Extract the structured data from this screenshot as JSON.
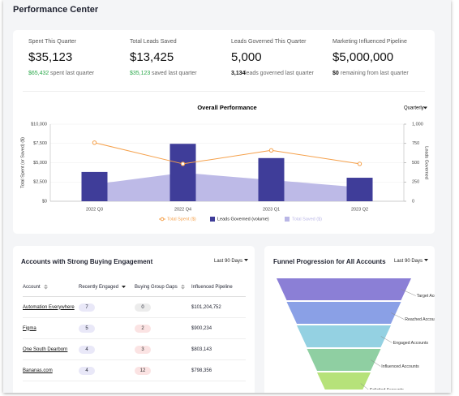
{
  "header": {
    "title": "Performance Center"
  },
  "kpis": [
    {
      "label": "Spent This Quarter",
      "value": "$35,123",
      "compare": "$65,432",
      "compare_text": "spent last quarter"
    },
    {
      "label": "Total Leads Saved",
      "value": "$13,425",
      "compare": "$35,123",
      "compare_text": "saved last quarter"
    },
    {
      "label": "Leads Governed This Quarter",
      "value": "5,000",
      "compare": "3,134",
      "compare_text": "leads governed last quarter"
    },
    {
      "label": "Marketing Influenced Pipeline",
      "value": "$5,000,000",
      "compare": "$0",
      "compare_text": "remaining from last quarter"
    }
  ],
  "chart_data": {
    "type": "bar-line",
    "title": "Overall Performance",
    "selector": "Quarterly",
    "categories": [
      "2022 Q3",
      "2022 Q4",
      "2023 Q1",
      "2023 Q2"
    ],
    "series": [
      {
        "name": "Total Spent ($)",
        "kind": "line",
        "color": "#f5a04a",
        "values": [
          7600,
          4850,
          6600,
          4850
        ]
      },
      {
        "name": "Leads Governed (volume)",
        "kind": "bar",
        "axis": "y2",
        "color": "#3f3d99",
        "values": [
          380,
          745,
          560,
          305
        ]
      },
      {
        "name": "Total Saved ($)",
        "kind": "area",
        "color": "#b9b6e6",
        "values": [
          2200,
          3700,
          2750,
          1800
        ]
      }
    ],
    "ylabel": "Total Spent (or Saved) ($)",
    "y2label": "Leads Governed",
    "ylim": [
      0,
      10000
    ],
    "yticks": [
      {
        "value": 0,
        "label": "$0"
      },
      {
        "value": 2500,
        "label": "$2,500"
      },
      {
        "value": 5000,
        "label": "$5,000"
      },
      {
        "value": 7500,
        "label": "$7,500"
      },
      {
        "value": 10000,
        "label": "$10,000"
      }
    ],
    "y2lim": [
      0,
      1000
    ],
    "y2ticks": [
      0,
      250,
      500,
      750,
      {
        "value": 1000,
        "label": "1,000"
      }
    ],
    "grid": true
  },
  "accounts": {
    "title": "Accounts with Strong Buying Engagement",
    "selector": "Last 90 Days",
    "table": {
      "columns": [
        "Account",
        "Recently Engaged",
        "Buying Group Gaps",
        "Influenced Pipeline"
      ],
      "rows": [
        [
          "Automation Everywhere",
          7,
          0,
          "$101,204,752"
        ],
        [
          "Figma",
          5,
          2,
          "$900,234"
        ],
        [
          "One South Dearborn",
          4,
          3,
          "$803,143"
        ],
        [
          "Bananas.com",
          4,
          12,
          "$798,356"
        ]
      ]
    }
  },
  "funnel": {
    "title": "Funnel Progression for All Accounts",
    "selector": "Last 90 Days",
    "stages": [
      {
        "label": "Target Accounts",
        "color": "#8b7fd6"
      },
      {
        "label": "Reached Accounts",
        "color": "#8aa0e6"
      },
      {
        "label": "Engaged Accounts",
        "color": "#94d1e2"
      },
      {
        "label": "Influenced Accounts",
        "color": "#8fcfa2"
      },
      {
        "label": "Solicited Accounts",
        "color": "#b6e27a"
      }
    ]
  }
}
